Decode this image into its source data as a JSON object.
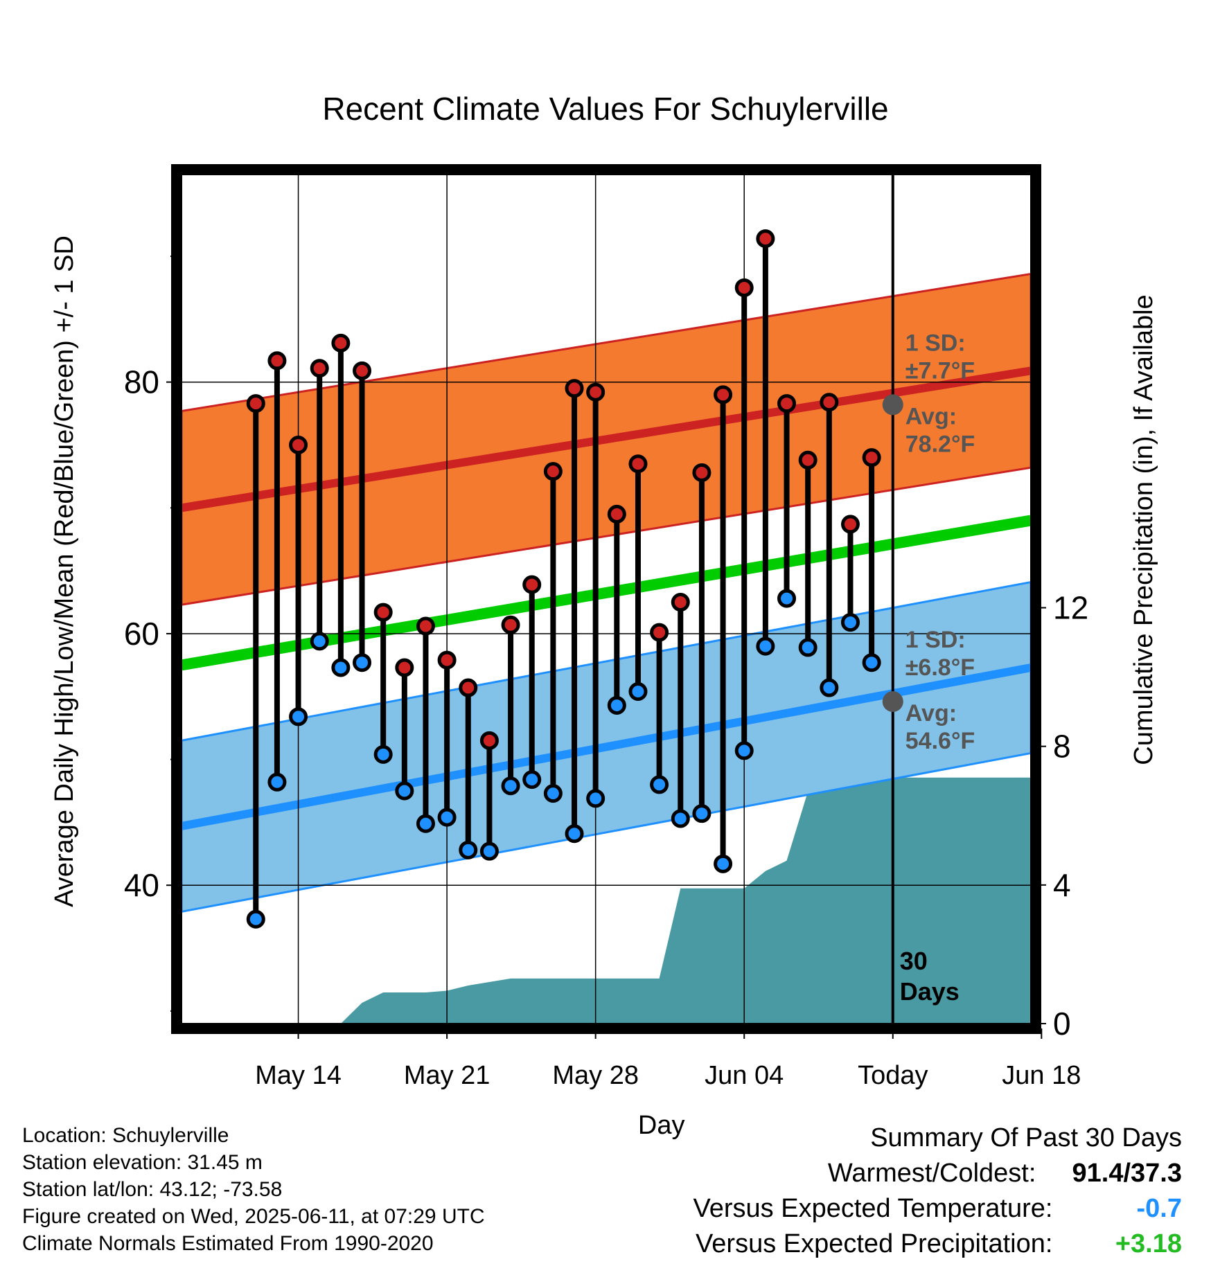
{
  "chart_data": {
    "type": "line",
    "title": "Recent Climate Values For Schuylerville",
    "xlabel": "Day",
    "ylabel": "Average Daily High/Low/Mean (Red/Blue/Green) +/- 1 SD",
    "y2label": "Cumulative Precipitation (in), If Available",
    "ylim": [
      29,
      96.5
    ],
    "y2lim": [
      0,
      24.5
    ],
    "xlim_days_from_may14": [
      -5.5,
      34.5
    ],
    "x_ticks": [
      {
        "day": 0,
        "label": "May 14"
      },
      {
        "day": 7,
        "label": "May 21"
      },
      {
        "day": 14,
        "label": "May 28"
      },
      {
        "day": 21,
        "label": "Jun 04"
      },
      {
        "day": 28,
        "label": "Today"
      },
      {
        "day": 35,
        "label": "Jun 18"
      }
    ],
    "y_ticks_major": [
      40,
      60,
      80
    ],
    "y_ticks_minor": [
      30,
      50,
      70,
      90
    ],
    "y2_ticks": [
      0,
      4,
      8,
      12
    ],
    "grid": true,
    "normals": {
      "high": {
        "start": 70.0,
        "end": 80.9,
        "sd": 7.7,
        "color": "#cc2222",
        "band_color": "#f47a30"
      },
      "low": {
        "start": 44.7,
        "end": 57.3,
        "sd": 6.8,
        "color": "#1e90ff",
        "band_color": "#82c1e8"
      },
      "mean": {
        "start": 57.5,
        "end": 69.0,
        "color": "#00cc00"
      }
    },
    "today_annotations": {
      "high_sd": "1 SD:",
      "high_sd_val": "±7.7°F",
      "high_avg": "Avg:",
      "high_avg_val": "78.2°F",
      "low_sd": "1 SD:",
      "low_sd_val": "±6.8°F",
      "low_avg": "Avg:",
      "low_avg_val": "54.6°F",
      "days_num": "30",
      "days_label": "Days"
    },
    "today_high_avg": 78.2,
    "today_low_avg": 54.6,
    "daily": {
      "series": [
        {
          "name": "High",
          "color": "#cc2222",
          "values": [
            78.3,
            81.7,
            75.0,
            81.1,
            83.1,
            80.9,
            61.7,
            57.3,
            60.6,
            57.9,
            55.7,
            51.5,
            60.7,
            63.9,
            72.9,
            79.5,
            79.2,
            69.5,
            73.5,
            60.1,
            62.5,
            72.8,
            79.0,
            87.5,
            91.4,
            78.3,
            73.8,
            78.4,
            68.7,
            74.0
          ]
        },
        {
          "name": "Low",
          "color": "#1e90ff",
          "values": [
            37.3,
            48.2,
            53.4,
            59.4,
            57.3,
            57.7,
            50.4,
            47.5,
            44.9,
            45.4,
            42.8,
            42.7,
            47.9,
            48.4,
            47.3,
            44.1,
            46.9,
            54.3,
            55.4,
            48.0,
            45.3,
            45.7,
            41.7,
            50.7,
            59.0,
            62.8,
            58.9,
            55.7,
            60.9,
            57.7
          ]
        }
      ],
      "start_day": -2
    },
    "precip": {
      "color": "#4a9aa3",
      "points": [
        [
          -5.5,
          0
        ],
        [
          2,
          0
        ],
        [
          3,
          0.6
        ],
        [
          4,
          0.9
        ],
        [
          6,
          0.9
        ],
        [
          7,
          0.95
        ],
        [
          8,
          1.1
        ],
        [
          10,
          1.3
        ],
        [
          13,
          1.3
        ],
        [
          16,
          1.3
        ],
        [
          17,
          1.3
        ],
        [
          18,
          3.9
        ],
        [
          21,
          3.9
        ],
        [
          22,
          4.4
        ],
        [
          23,
          4.7
        ],
        [
          24,
          6.7
        ],
        [
          25,
          6.7
        ],
        [
          26,
          7.0
        ],
        [
          27,
          7.1
        ],
        [
          34.5,
          7.1
        ]
      ]
    }
  },
  "footer": {
    "location": "Location: Schuylerville",
    "elevation": "Station elevation: 31.45 m",
    "latlon": "Station lat/lon: 43.12; -73.58",
    "created": "Figure created on Wed, 2025-06-11, at 07:29 UTC",
    "normals": "Climate Normals Estimated From 1990-2020"
  },
  "summary": {
    "heading": "Summary Of Past 30 Days",
    "warm_cold_label": "Warmest/Coldest:",
    "warm_cold_value": "91.4/37.3",
    "temp_label": "Versus Expected Temperature:",
    "temp_value": "-0.7",
    "temp_color": "#1e90ff",
    "precip_label": "Versus Expected Precipitation:",
    "precip_value": "+3.18",
    "precip_color": "#22bb22"
  }
}
